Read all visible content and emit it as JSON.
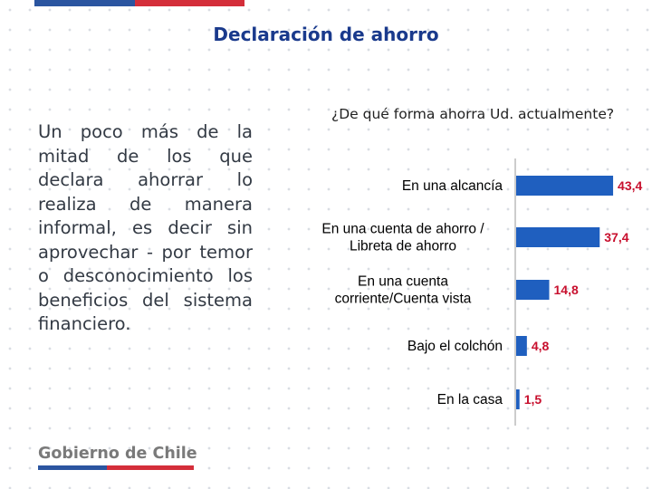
{
  "header": {
    "title": "Declaración de ahorro"
  },
  "body": {
    "text": "Un poco más de la mitad de los que declara ahorrar lo realiza de manera informal, es decir sin aprovechar - por temor o desconocimiento los beneficios del sistema financiero."
  },
  "footer": {
    "logo_text": "Gobierno de Chile"
  },
  "colors": {
    "chile_blue": "#2b55a0",
    "chile_red": "#d42e3a",
    "bar_blue": "#1f5fbf",
    "label_red": "#c8102e",
    "title_blue": "#1a3a8c",
    "logo_gray": "#7a7a7a"
  },
  "chart_data": {
    "type": "bar",
    "orientation": "horizontal",
    "title": "¿De qué forma ahorra Ud. actualmente?",
    "categories": [
      "En una alcancía",
      "En una cuenta de ahorro / Libreta de ahorro",
      "En una cuenta corriente/Cuenta vista",
      "Bajo el colchón",
      "En la casa"
    ],
    "category_lines": [
      [
        "En una alcancía"
      ],
      [
        "En una cuenta de ahorro /",
        "Libreta de ahorro"
      ],
      [
        "En una cuenta",
        "corriente/Cuenta vista"
      ],
      [
        "Bajo el colchón"
      ],
      [
        "En la casa"
      ]
    ],
    "values": [
      43.4,
      37.4,
      14.8,
      4.8,
      1.5
    ],
    "value_labels": [
      "43,4",
      "37,4",
      "14,8",
      "4,8",
      "1,5"
    ],
    "xlim": [
      0,
      45
    ],
    "grid": false,
    "legend": "none"
  }
}
